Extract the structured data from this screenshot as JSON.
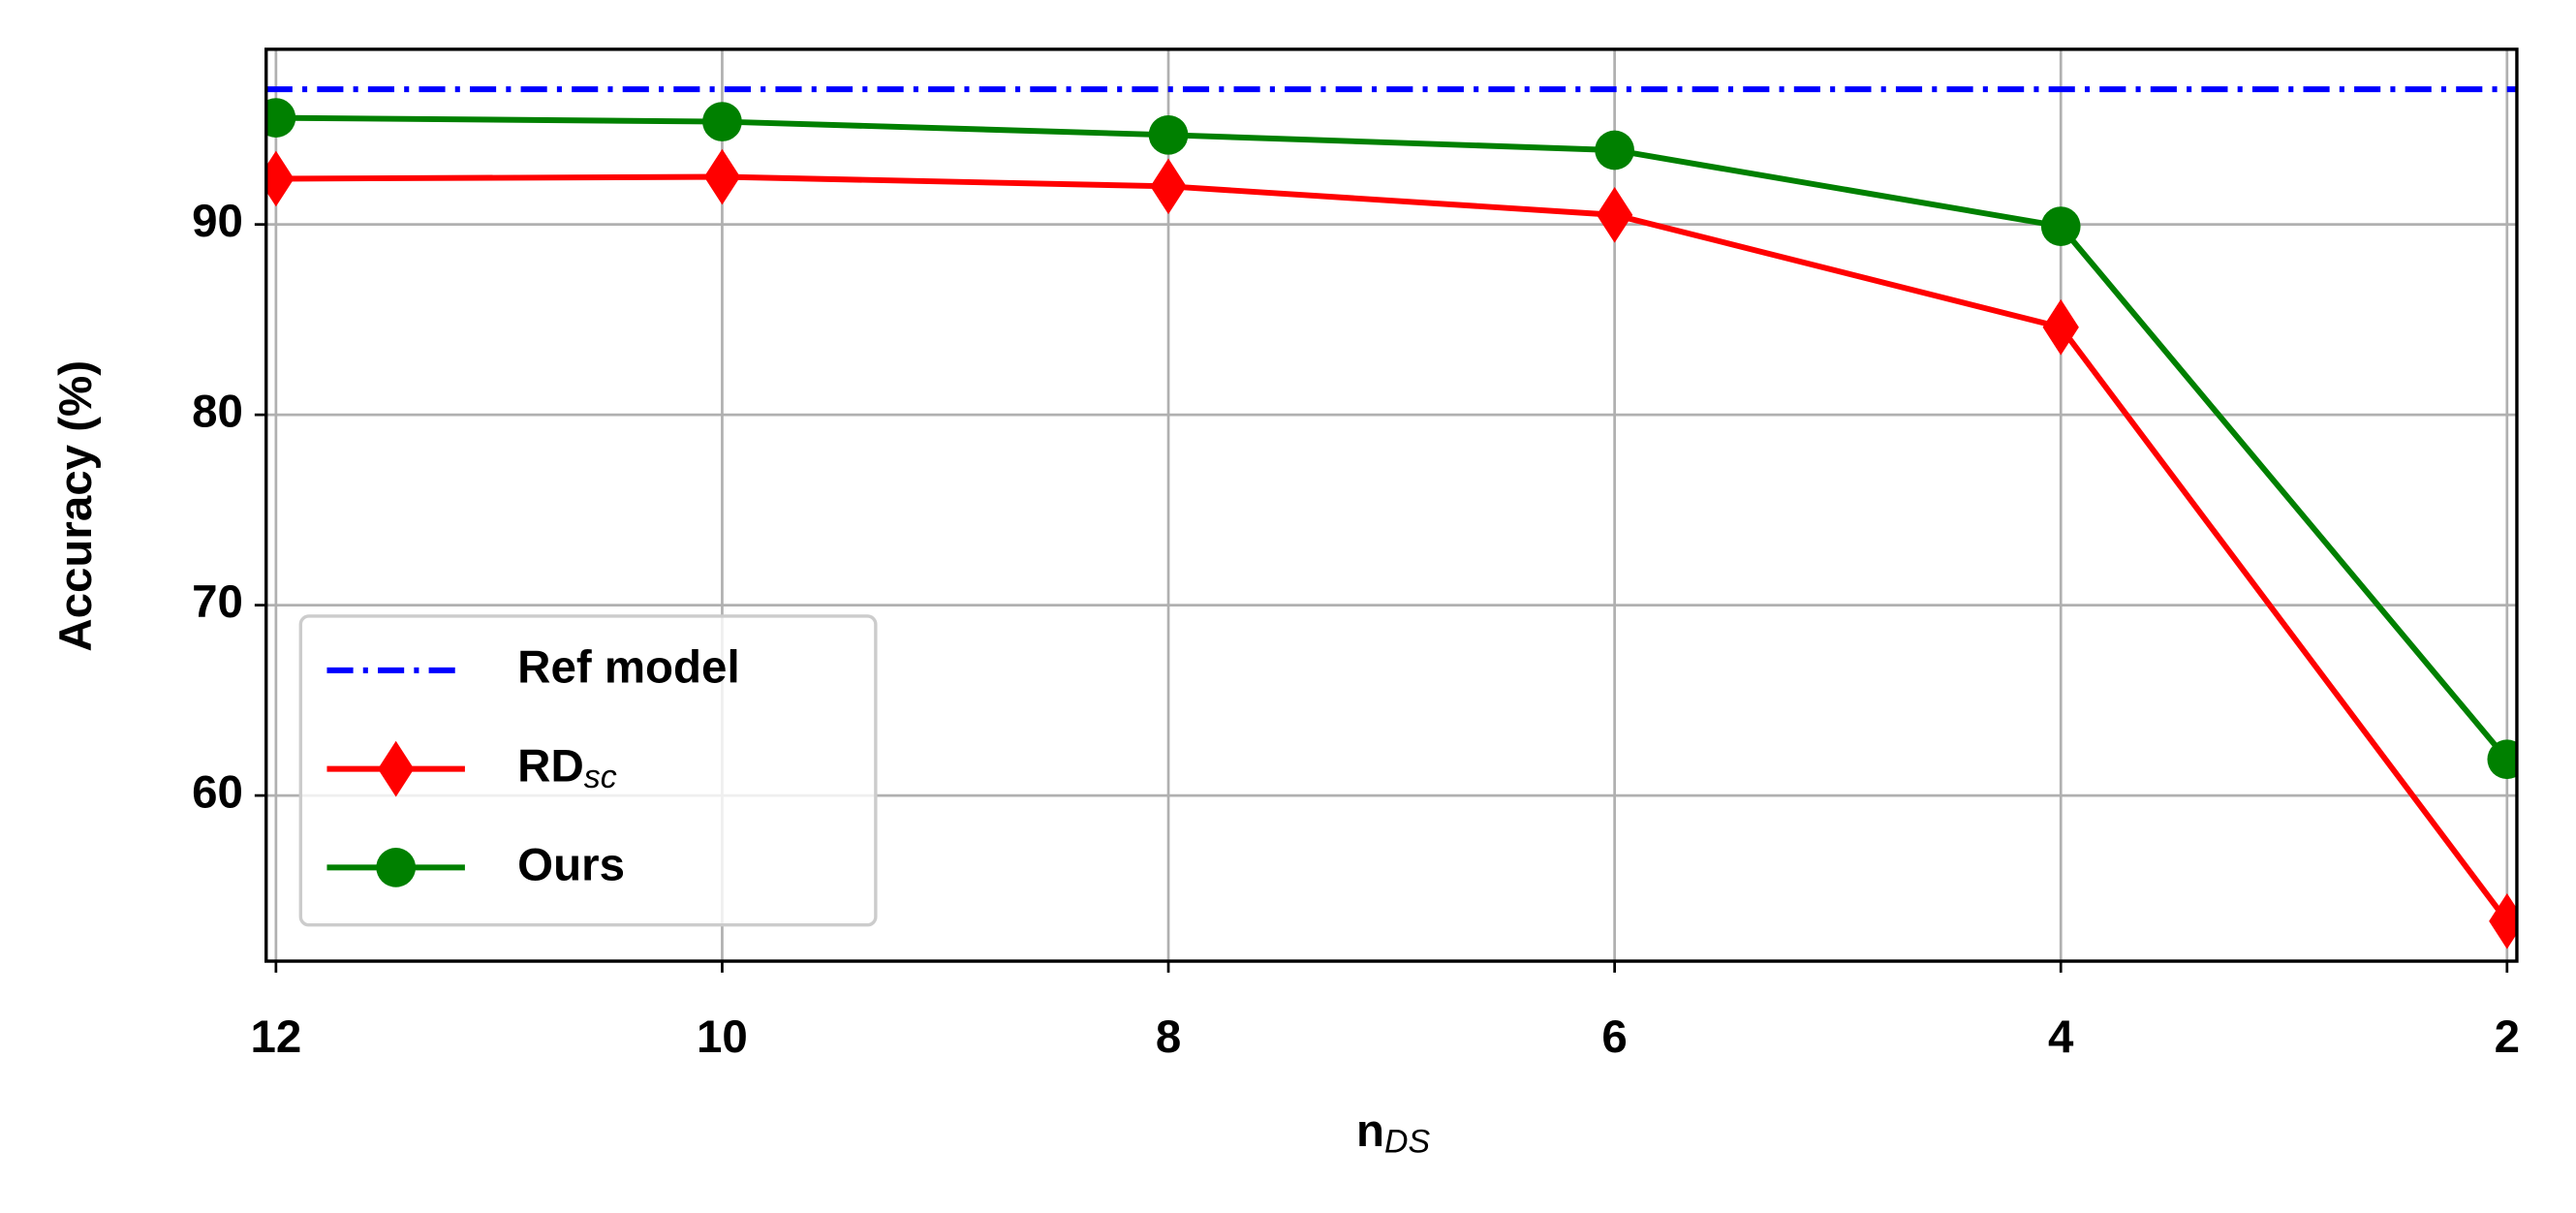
{
  "chart_data": {
    "type": "line",
    "xlabel": "n",
    "xlabel_sub": "DS",
    "ylabel": "Accuracy (%)",
    "x": [
      12,
      10,
      8,
      6,
      4,
      2
    ],
    "xlim": [
      12.044,
      1.956
    ],
    "xticks": [
      12,
      10,
      8,
      6,
      4,
      2
    ],
    "ylim": [
      51.3,
      99.2
    ],
    "yticks": [
      60,
      70,
      80,
      90
    ],
    "grid": true,
    "legend": "lower left",
    "reference_line": {
      "name": "Ref model",
      "color": "#0000ff",
      "value": 97.1
    },
    "series": [
      {
        "name": "RD",
        "name_sub": "sc",
        "color": "#ff0000",
        "marker": "diamond",
        "values": [
          92.4,
          92.5,
          92.0,
          90.5,
          84.6,
          53.4
        ]
      },
      {
        "name": "Ours",
        "color": "#008000",
        "marker": "circle",
        "values": [
          95.6,
          95.4,
          94.7,
          93.9,
          89.9,
          61.9
        ]
      }
    ]
  }
}
